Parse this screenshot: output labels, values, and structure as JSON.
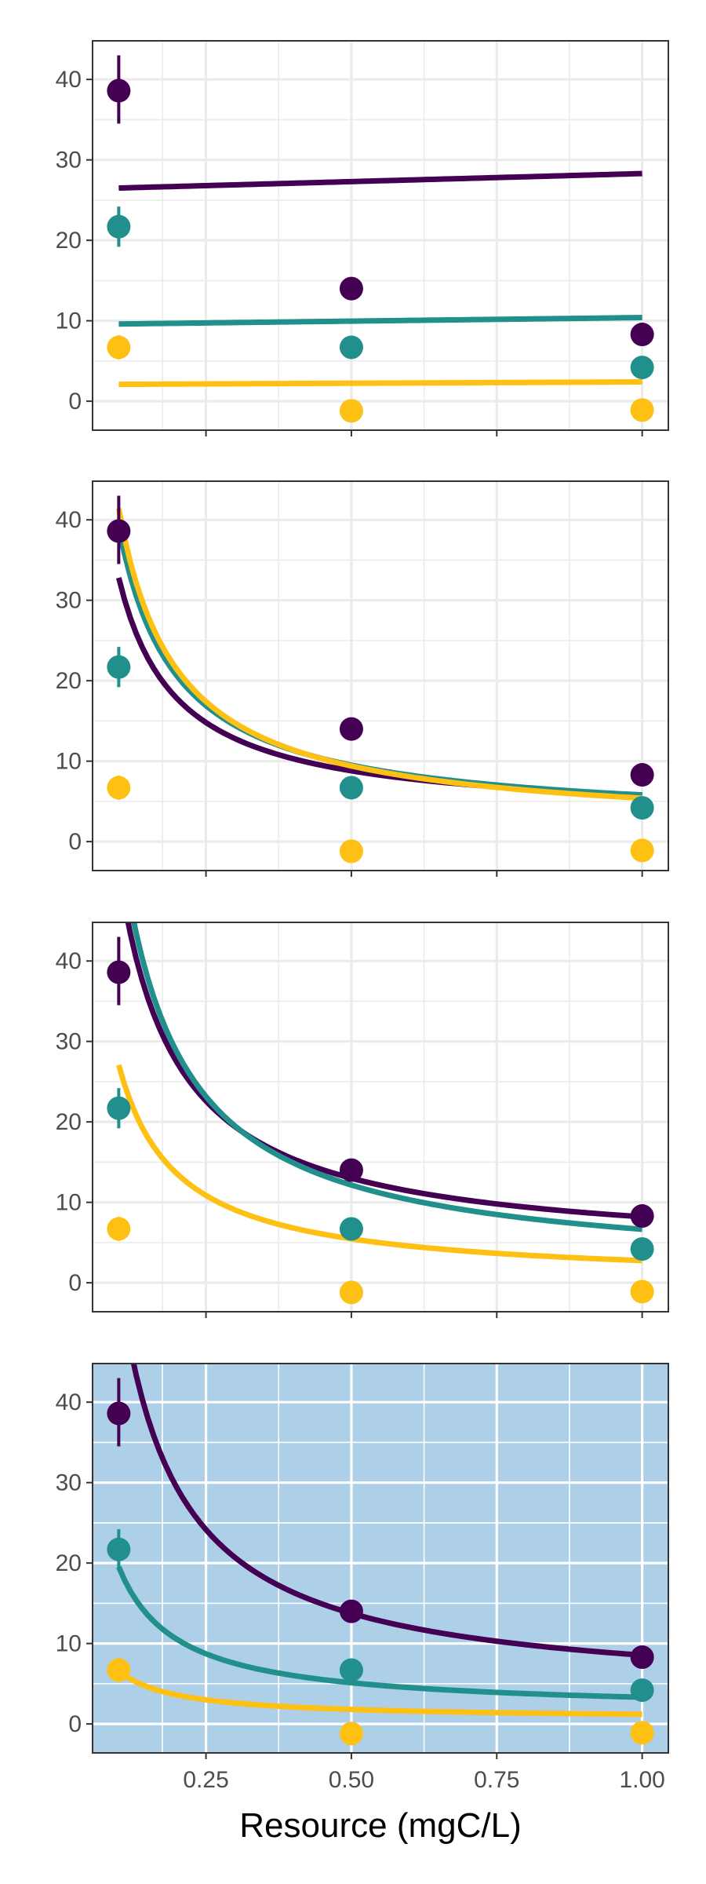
{
  "chart_data": {
    "type": "scatter",
    "xlabel": "Resource (mgC/L)",
    "ylabel": "",
    "xlim": [
      0.055,
      1.045
    ],
    "ylim": [
      -3.6,
      44.8
    ],
    "x_ticks": [
      0.25,
      0.5,
      0.75,
      1.0
    ],
    "x_tick_labels": [
      "0.25",
      "0.50",
      "0.75",
      "1.00"
    ],
    "y_ticks": [
      0,
      10,
      20,
      30,
      40
    ],
    "y_tick_labels": [
      "0",
      "10",
      "20",
      "30",
      "40"
    ],
    "grid": true,
    "x_points": [
      0.1,
      0.5,
      1.0
    ],
    "colors": {
      "purple": "#440154",
      "teal": "#21908C",
      "yellow": "#FDC013",
      "highlight_bg": "#AECFE8",
      "frame": "#333333",
      "grid_normal": "#EBEBEB",
      "grid_highlight": "#FFFFFF"
    },
    "panels": [
      {
        "highlighted": false,
        "series": [
          {
            "color": "purple",
            "points": [
              38.6,
              14.0,
              8.3
            ],
            "errors": [
              [
                34.5,
                43.0
              ],
              null,
              null
            ],
            "curve": {
              "form": "linear",
              "a": 26.5,
              "b": 28.3
            }
          },
          {
            "color": "teal",
            "points": [
              21.7,
              6.7,
              4.2
            ],
            "errors": [
              [
                19.2,
                24.2
              ],
              null,
              null
            ],
            "curve": {
              "form": "linear",
              "a": 9.6,
              "b": 10.4
            }
          },
          {
            "color": "yellow",
            "points": [
              6.7,
              -1.2,
              -1.1
            ],
            "errors": [
              [
                5.2,
                8.2
              ],
              null,
              null
            ],
            "curve": {
              "form": "linear",
              "a": 2.1,
              "b": 2.4
            }
          }
        ]
      },
      {
        "highlighted": false,
        "series": [
          {
            "color": "purple",
            "points": [
              38.6,
              14.0,
              8.3
            ],
            "errors": [
              [
                34.5,
                43.0
              ],
              null,
              null
            ],
            "curve": {
              "form": "reciprocal",
              "a": 3.0,
              "b": 2.8
            }
          },
          {
            "color": "teal",
            "points": [
              21.7,
              6.7,
              4.2
            ],
            "errors": [
              [
                19.2,
                24.2
              ],
              null,
              null
            ],
            "curve": {
              "form": "reciprocal",
              "a": 3.7,
              "b": 2.1
            }
          },
          {
            "color": "yellow",
            "points": [
              6.7,
              -1.2,
              -1.1
            ],
            "errors": [
              [
                5.2,
                8.2
              ],
              null,
              null
            ],
            "curve": {
              "form": "reciprocal",
              "a": 4.0,
              "b": 1.4
            }
          }
        ]
      },
      {
        "highlighted": false,
        "series": [
          {
            "color": "purple",
            "points": [
              38.6,
              14.0,
              8.3
            ],
            "errors": [
              [
                34.5,
                43.0
              ],
              null,
              null
            ],
            "curve": {
              "form": "reciprocal",
              "a": 4.8,
              "b": 3.4
            }
          },
          {
            "color": "teal",
            "points": [
              21.7,
              6.7,
              4.2
            ],
            "errors": [
              [
                19.2,
                24.2
              ],
              null,
              null
            ],
            "curve": {
              "form": "reciprocal",
              "a": 5.5,
              "b": 1.15
            }
          },
          {
            "color": "yellow",
            "points": [
              6.7,
              -1.2,
              -1.1
            ],
            "errors": [
              [
                5.2,
                8.2
              ],
              null,
              null
            ],
            "curve": {
              "form": "reciprocal",
              "a": 2.7,
              "b": 0.06
            }
          }
        ]
      },
      {
        "highlighted": true,
        "series": [
          {
            "color": "purple",
            "points": [
              38.6,
              14.0,
              8.3
            ],
            "errors": [
              [
                34.5,
                43.0
              ],
              null,
              null
            ],
            "curve": {
              "form": "reciprocal",
              "a": 5.2,
              "b": 3.35
            }
          },
          {
            "color": "teal",
            "points": [
              21.7,
              6.7,
              4.2
            ],
            "errors": [
              [
                19.2,
                24.2
              ],
              null,
              null
            ],
            "curve": {
              "form": "reciprocal",
              "a": 1.8,
              "b": 1.52
            }
          },
          {
            "color": "yellow",
            "points": [
              6.7,
              -1.2,
              -1.1
            ],
            "errors": [
              [
                5.2,
                8.2
              ],
              null,
              null
            ],
            "curve": {
              "form": "reciprocal",
              "a": 0.6,
              "b": 0.6
            }
          }
        ]
      }
    ]
  }
}
